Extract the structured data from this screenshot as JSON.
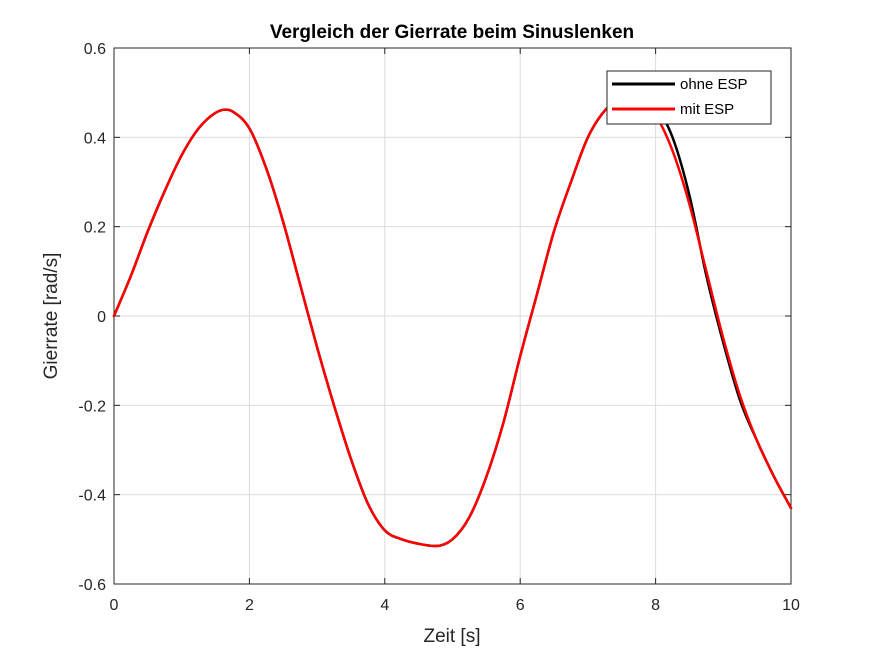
{
  "chart_data": {
    "type": "line",
    "title": "Vergleich der Gierrate beim Sinuslenken",
    "xlabel": "Zeit [s]",
    "ylabel": "Gierrate [rad/s]",
    "xlim": [
      0,
      10
    ],
    "ylim": [
      -0.6,
      0.6
    ],
    "xticks": [
      0,
      2,
      4,
      6,
      8,
      10
    ],
    "xtick_labels": [
      "0",
      "2",
      "4",
      "6",
      "8",
      "10"
    ],
    "yticks": [
      -0.6,
      -0.4,
      -0.2,
      0,
      0.2,
      0.4,
      0.6
    ],
    "ytick_labels": [
      "-0.6",
      "-0.4",
      "-0.2",
      "0",
      "0.2",
      "0.4",
      "0.6"
    ],
    "grid": true,
    "legend_position": "top-right",
    "x": [
      0,
      0.25,
      0.5,
      0.75,
      1.0,
      1.25,
      1.5,
      1.65,
      1.75,
      2.0,
      2.25,
      2.5,
      2.75,
      3.0,
      3.25,
      3.5,
      3.75,
      4.0,
      4.25,
      4.5,
      4.75,
      5.0,
      5.25,
      5.5,
      5.75,
      6.0,
      6.25,
      6.5,
      6.75,
      7.0,
      7.25,
      7.5,
      7.75,
      8.0,
      8.25,
      8.5,
      8.75,
      9.0,
      9.25,
      9.5,
      9.75,
      10.0
    ],
    "series": [
      {
        "name": "ohne ESP",
        "color": "#000000",
        "values": [
          0.0,
          0.09,
          0.19,
          0.28,
          0.36,
          0.42,
          0.455,
          0.462,
          0.458,
          0.42,
          0.33,
          0.21,
          0.07,
          -0.07,
          -0.2,
          -0.32,
          -0.42,
          -0.48,
          -0.5,
          -0.51,
          -0.515,
          -0.5,
          -0.45,
          -0.36,
          -0.24,
          -0.09,
          0.05,
          0.19,
          0.3,
          0.4,
          0.46,
          0.49,
          0.495,
          0.47,
          0.4,
          0.27,
          0.09,
          -0.06,
          -0.19,
          -0.28,
          -0.36,
          -0.43
        ]
      },
      {
        "name": "mit ESP",
        "color": "#ff0000",
        "values": [
          0.0,
          0.09,
          0.19,
          0.28,
          0.36,
          0.42,
          0.455,
          0.462,
          0.458,
          0.42,
          0.33,
          0.21,
          0.07,
          -0.07,
          -0.2,
          -0.32,
          -0.42,
          -0.48,
          -0.5,
          -0.51,
          -0.515,
          -0.5,
          -0.45,
          -0.36,
          -0.24,
          -0.09,
          0.05,
          0.19,
          0.3,
          0.4,
          0.46,
          0.485,
          0.49,
          0.45,
          0.37,
          0.25,
          0.1,
          -0.05,
          -0.18,
          -0.28,
          -0.36,
          -0.43
        ]
      }
    ]
  }
}
